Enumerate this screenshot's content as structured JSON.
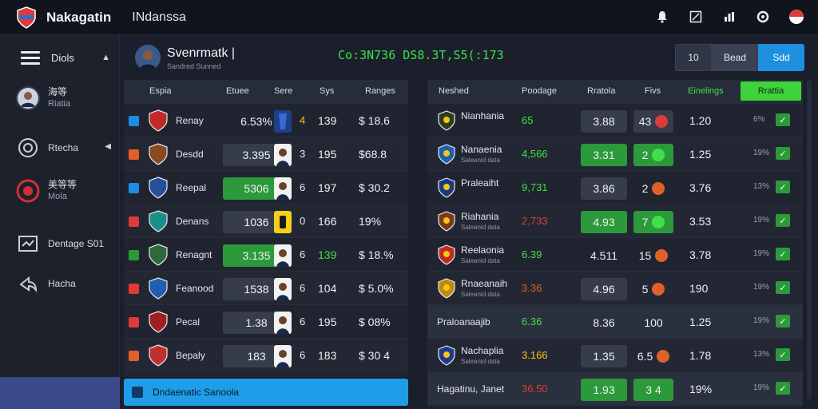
{
  "app": {
    "title": "Nakagatin",
    "region": "INdanssa"
  },
  "sidebar": {
    "menu_label": "Diols",
    "items": [
      {
        "label": "海等",
        "sub": "Riatia"
      },
      {
        "label": "Rtecha"
      },
      {
        "label": "美等等",
        "sub": "Mola"
      },
      {
        "label": "Dentage S01"
      },
      {
        "label": "Hacha"
      }
    ]
  },
  "header": {
    "name": "Svenrmatk",
    "sub": "Sandred Sunned",
    "ticker": "Co:3N736 DS8.3T,S5(:173",
    "buttons": [
      "10",
      "Bead",
      "Sdd"
    ]
  },
  "left_table": {
    "headers": [
      "Espia",
      "Etuee",
      "Sere",
      "Sys",
      "Ranges"
    ],
    "rows": [
      {
        "name": "Renay",
        "value": "6.53%",
        "score": "4",
        "sys": "139",
        "range": "$ 18.6",
        "chk": "#1e8de0",
        "style": "plain",
        "score_color": "#f5c518"
      },
      {
        "name": "Desdd",
        "value": "3.395",
        "score": "3",
        "sys": "195",
        "range": "$68.8",
        "chk": "#e0602a",
        "style": "gray",
        "score_color": "#e8ebf0"
      },
      {
        "name": "Reepal",
        "value": "5306",
        "score": "6",
        "sys": "197",
        "range": "$ 30.2",
        "chk": "#1e8de0",
        "style": "green",
        "score_color": "#e8ebf0"
      },
      {
        "name": "Denans",
        "value": "1036",
        "score": "0",
        "sys": "166",
        "range": "19%",
        "chk": "#e03a3a",
        "style": "gray",
        "score_color": "#e8ebf0"
      },
      {
        "name": "Renagnt",
        "value": "3.135",
        "score": "6",
        "sys": "139",
        "range": "$ 18.%",
        "chk": "#2c9a3a",
        "style": "green",
        "score_color": "#e8ebf0",
        "sys_color": "#3fe04a"
      },
      {
        "name": "Feanood",
        "value": "1538",
        "score": "6",
        "sys": "104",
        "range": "$ 5.0%",
        "chk": "#e03a3a",
        "style": "gray",
        "score_color": "#e8ebf0"
      },
      {
        "name": "Pecal",
        "value": "1.38",
        "score": "6",
        "sys": "195",
        "range": "$ 08%",
        "chk": "#e03a3a",
        "style": "gray",
        "score_color": "#e8ebf0"
      },
      {
        "name": "Bepaly",
        "value": "183",
        "score": "6",
        "sys": "183",
        "range": "$ 30 4",
        "chk": "#e0602a",
        "style": "gray",
        "score_color": "#e8ebf0"
      }
    ],
    "footer": "Dndaenatic Sanoola"
  },
  "right_table": {
    "headers": [
      "Neshed",
      "Poodage",
      "Rratola",
      "Fivs",
      "Einelings"
    ],
    "header_button": "Rrattia",
    "rows": [
      {
        "name": "Nianhania",
        "sub": "",
        "pop": "65",
        "pop_color": "#3fe04a",
        "r": "3.88",
        "r_style": "gray",
        "fav": "43",
        "fav_style": "gray",
        "dot": "#e03a3a",
        "rank": "1.20",
        "pct": "6%"
      },
      {
        "name": "Nanaenia",
        "sub": "Saleanid data",
        "pop": "4,566",
        "pop_color": "#3fe04a",
        "r": "3.31",
        "r_style": "green",
        "fav": "2",
        "fav_style": "green",
        "dot": "#3fe04a",
        "rank": "1.25",
        "pct": "19%"
      },
      {
        "name": "Praleaiht",
        "sub": "",
        "pop": "9,731",
        "pop_color": "#3fe04a",
        "r": "3.86",
        "r_style": "gray",
        "fav": "2",
        "fav_style": "none",
        "dot": "#e0602a",
        "rank": "3.76",
        "pct": "13%"
      },
      {
        "name": "Riahania",
        "sub": "Saleanid data",
        "pop": "2,733",
        "pop_color": "#e03a3a",
        "r": "4.93",
        "r_style": "green",
        "fav": "7",
        "fav_style": "green",
        "dot": "#3fe04a",
        "rank": "3.53",
        "pct": "19%"
      },
      {
        "name": "Reelaonia",
        "sub": "Saleanid data",
        "pop": "6.39",
        "pop_color": "#3fe04a",
        "r": "4.511",
        "r_style": "none",
        "fav": "15",
        "fav_style": "none",
        "dot": "#e0602a",
        "rank": "3.78",
        "pct": "19%"
      },
      {
        "name": "Rnaeanaih",
        "sub": "Saleanid data",
        "pop": "3.36",
        "pop_color": "#e0602a",
        "r": "4.96",
        "r_style": "gray",
        "fav": "5",
        "fav_style": "none",
        "dot": "#e0602a",
        "rank": "190",
        "pct": "19%"
      },
      {
        "name": "Praloanaajib",
        "sub": "",
        "pop": "6.36",
        "pop_color": "#3fe04a",
        "r": "8.36",
        "r_style": "none",
        "fav": "100",
        "fav_style": "none",
        "dot": "",
        "rank": "1.25",
        "pct": "19%",
        "single": true
      },
      {
        "name": "Nachaplia",
        "sub": "Saleanid data",
        "pop": "3.166",
        "pop_color": "#f5c518",
        "r": "1.35",
        "r_style": "gray",
        "fav": "6.5",
        "fav_style": "none",
        "dot": "#e0602a",
        "rank": "1.78",
        "pct": "13%"
      },
      {
        "name": "Hagatinu, Janet",
        "sub": "",
        "pop": "36.50",
        "pop_color": "#e03a3a",
        "r": "1.93",
        "r_style": "green",
        "fav": "3 4",
        "fav_style": "green",
        "dot": "",
        "rank": "19%",
        "pct": "19%",
        "single": true
      }
    ]
  },
  "colors": {
    "accent": "#1f8fe0",
    "green": "#2c9a3a",
    "lime": "#3ed33a",
    "ticker": "#3fe04a"
  }
}
